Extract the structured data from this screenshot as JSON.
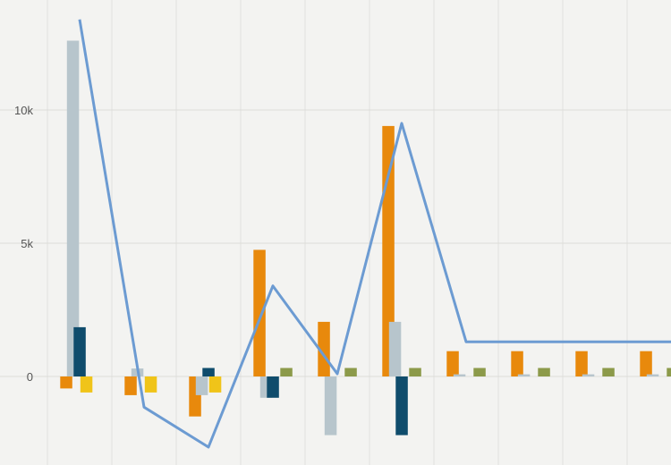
{
  "chart_data": {
    "type": "bar",
    "title": "",
    "xlabel": "",
    "ylabel": "",
    "ylim": [
      -3300,
      13400
    ],
    "yticks": [
      {
        "value": 0,
        "label": "0"
      },
      {
        "value": 5000,
        "label": "5k"
      },
      {
        "value": 10000,
        "label": "10k"
      }
    ],
    "grid": true,
    "legend": "none",
    "x": [
      1,
      2,
      3,
      4,
      5,
      6,
      7,
      8,
      9,
      10
    ],
    "series": [
      {
        "type": "bar",
        "color": "#e8890c",
        "values": [
          -450,
          -700,
          -1500,
          4750,
          2050,
          9400,
          950,
          950,
          950,
          950
        ]
      },
      {
        "type": "bar",
        "color": "#b7c5cc",
        "values": [
          12600,
          300,
          -700,
          -800,
          -2200,
          2050,
          80,
          80,
          80,
          80
        ]
      },
      {
        "type": "bar",
        "color": "#0f4c6c",
        "values": [
          1850,
          0,
          320,
          -800,
          0,
          -2200,
          0,
          0,
          0,
          0
        ]
      },
      {
        "type": "bar",
        "color": "#f0c419",
        "values": [
          -600,
          -600,
          -600,
          0,
          0,
          0,
          0,
          0,
          0,
          0
        ]
      },
      {
        "type": "bar",
        "color": "#8c9a4a",
        "values": [
          0,
          0,
          0,
          320,
          320,
          320,
          320,
          320,
          320,
          320
        ]
      },
      {
        "type": "line",
        "color": "#6c9bd2",
        "values": [
          13400,
          -1150,
          -2650,
          3400,
          100,
          9500,
          1300,
          1300,
          1300,
          1300
        ]
      }
    ]
  }
}
